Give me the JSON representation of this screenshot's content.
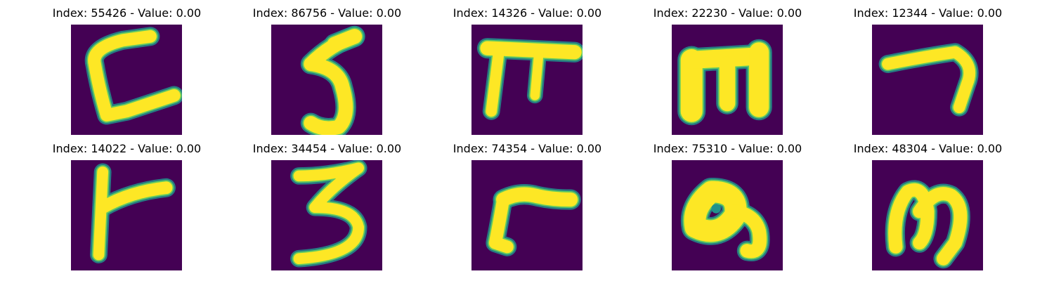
{
  "chart_data": [
    {
      "type": "image",
      "title": "Index: 55426 - Value: 0.00",
      "index": 55426,
      "value": 0.0,
      "glyph": "C-shape",
      "colormap": "viridis"
    },
    {
      "type": "image",
      "title": "Index: 86756 - Value: 0.00",
      "index": 86756,
      "value": 0.0,
      "glyph": "5",
      "colormap": "viridis"
    },
    {
      "type": "image",
      "title": "Index: 14326 - Value: 0.00",
      "index": 14326,
      "value": 0.0,
      "glyph": "pi-shape",
      "colormap": "viridis"
    },
    {
      "type": "image",
      "title": "Index: 22230 - Value: 0.00",
      "index": 22230,
      "value": 0.0,
      "glyph": "m-block",
      "colormap": "viridis"
    },
    {
      "type": "image",
      "title": "Index: 12344 - Value: 0.00",
      "index": 12344,
      "value": 0.0,
      "glyph": "7",
      "colormap": "viridis"
    },
    {
      "type": "image",
      "title": "Index: 14022 - Value: 0.00",
      "index": 14022,
      "value": 0.0,
      "glyph": "F-shape",
      "colormap": "viridis"
    },
    {
      "type": "image",
      "title": "Index: 34454 - Value: 0.00",
      "index": 34454,
      "value": 0.0,
      "glyph": "3",
      "colormap": "viridis"
    },
    {
      "type": "image",
      "title": "Index: 74354 - Value: 0.00",
      "index": 74354,
      "value": 0.0,
      "glyph": "r-shape",
      "colormap": "viridis"
    },
    {
      "type": "image",
      "title": "Index: 75310 - Value: 0.00",
      "index": 75310,
      "value": 0.0,
      "glyph": "loop-9",
      "colormap": "viridis"
    },
    {
      "type": "image",
      "title": "Index: 48304 - Value: 0.00",
      "index": 48304,
      "value": 0.0,
      "glyph": "m",
      "colormap": "viridis"
    }
  ],
  "colors": {
    "background": "#440154",
    "stroke": "#fde725",
    "edge": "#21918c"
  }
}
